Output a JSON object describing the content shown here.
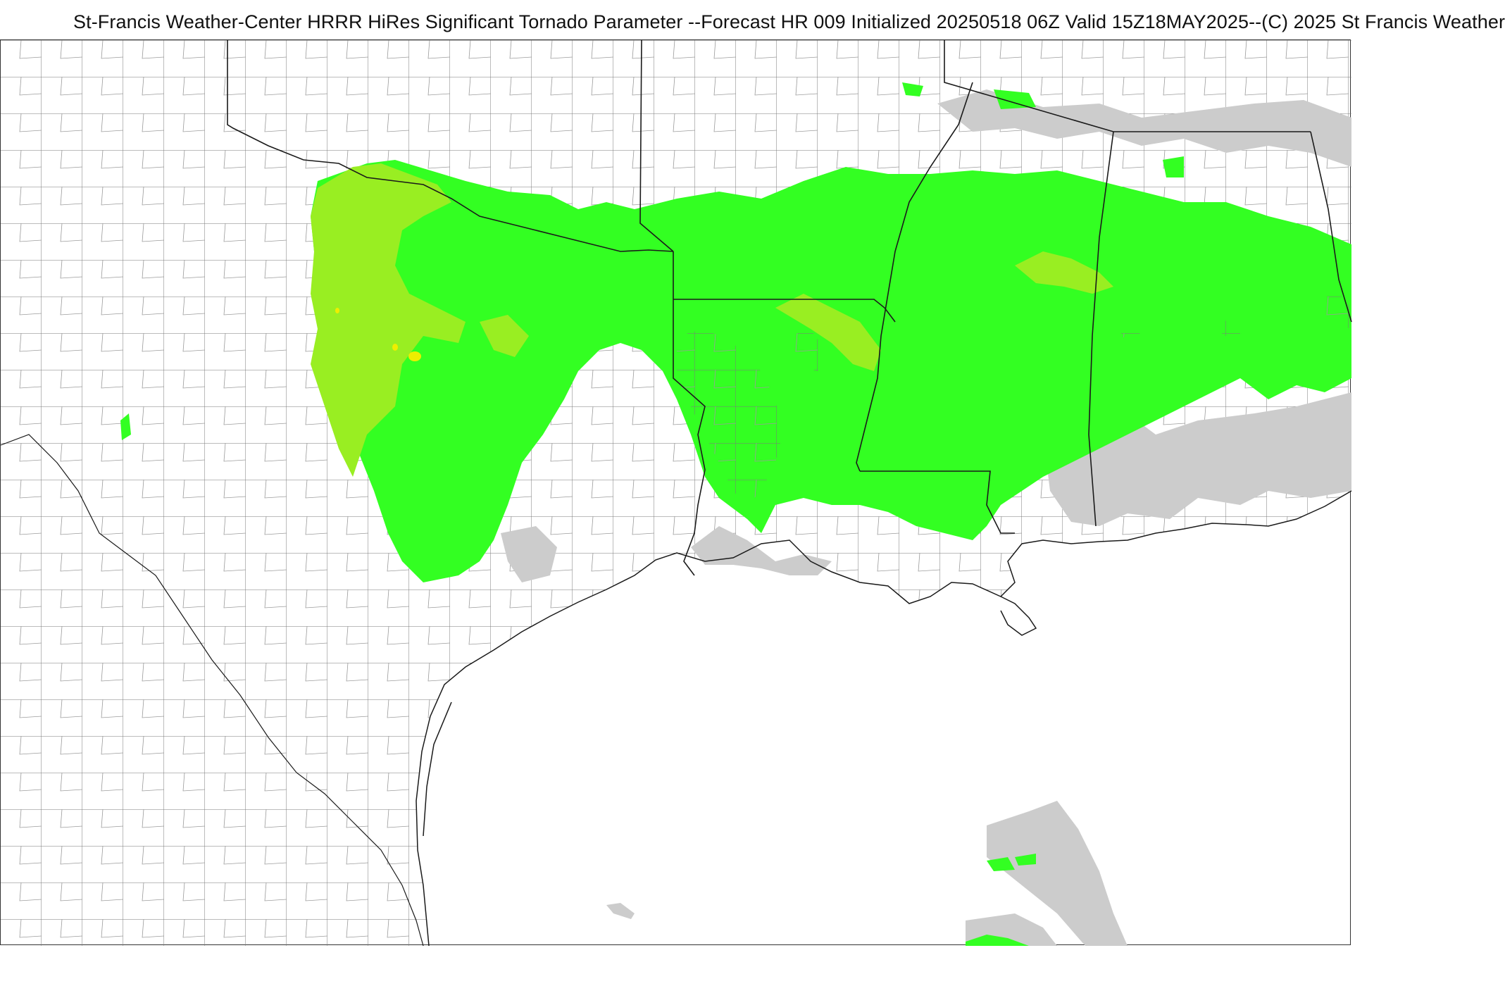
{
  "title": "St-Francis Weather-Center HRRR HiRes Significant Tornado Parameter --Forecast HR 009 Initialized 20250518 06Z Valid 15Z18MAY2025--(C) 2025 St Francis Weather",
  "map": {
    "product": "HRRR Significant Tornado Parameter",
    "region": "South-Central United States / Gulf of Mexico",
    "forecast_hour": "009",
    "initialized": "20250518 06Z",
    "valid": "15Z18MAY2025",
    "colors": {
      "background": "#ffffff",
      "county_lines": "#7a7a7a",
      "state_lines": "#1a1a1a",
      "coastline": "#1a1a1a",
      "shade_gray": "#cccccc",
      "shade_green": "#33ff22",
      "shade_lime": "#99ee22",
      "shade_yellow": "#eeee00"
    }
  }
}
